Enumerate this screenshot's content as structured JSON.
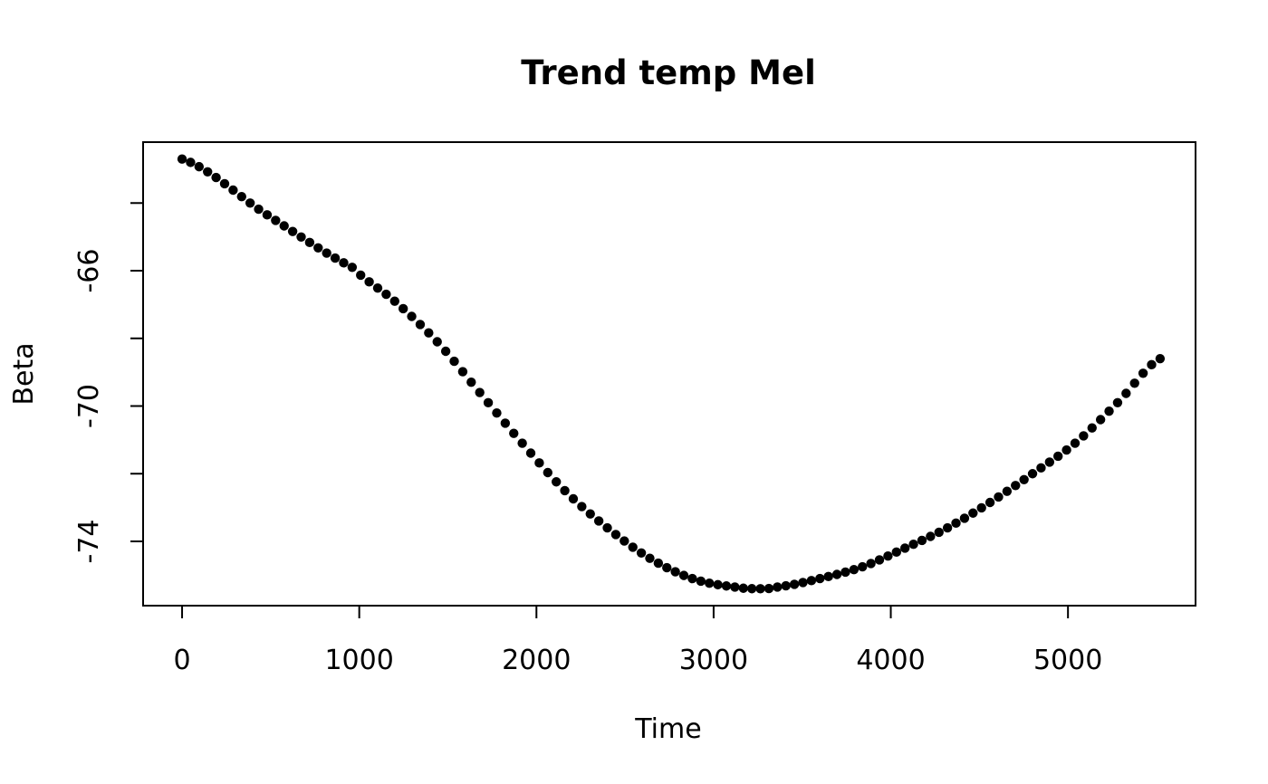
{
  "chart_data": {
    "type": "scatter",
    "title": "Trend temp Mel",
    "xlabel": "Time",
    "ylabel": "Beta",
    "xlim": [
      -220,
      5720
    ],
    "ylim": [
      -75.9,
      -62.2
    ],
    "xticks": [
      0,
      1000,
      2000,
      3000,
      4000,
      5000
    ],
    "xtick_labels": [
      "0",
      "1000",
      "2000",
      "3000",
      "4000",
      "5000"
    ],
    "yticks": [
      -64,
      -66,
      -68,
      -70,
      -72,
      -74
    ],
    "ytick_labels": [
      "",
      "-66",
      "",
      "-70",
      "",
      "-74"
    ],
    "grid": false,
    "legend": "none",
    "marker_color": "#000000",
    "x_start": 0,
    "x_step": 48,
    "x_count": 116,
    "curve_anchors": {
      "x": [
        0,
        480,
        960,
        1200,
        1440,
        1680,
        1920,
        2160,
        2400,
        2640,
        2880,
        3120,
        3264,
        3360,
        3600,
        3840,
        4080,
        4320,
        4560,
        4800,
        5040,
        5280,
        5520
      ],
      "y": [
        -62.7,
        -64.35,
        -65.9,
        -66.9,
        -68.1,
        -69.6,
        -71.1,
        -72.5,
        -73.6,
        -74.5,
        -75.1,
        -75.35,
        -75.4,
        -75.35,
        -75.1,
        -74.75,
        -74.2,
        -73.6,
        -72.85,
        -72.0,
        -71.1,
        -69.9,
        -68.6
      ]
    }
  }
}
